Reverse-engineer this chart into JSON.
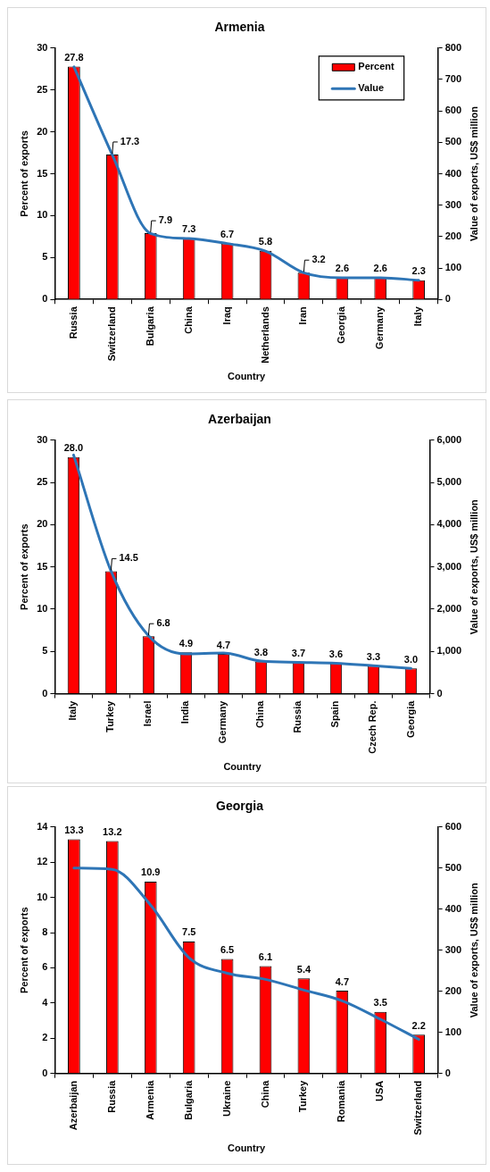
{
  "chart_data": [
    {
      "type": "bar",
      "title": "Armenia",
      "xlabel": "Country",
      "ylabel": "Percent of exports",
      "y2label": "Value of exports, US$ million",
      "categories": [
        "Russia",
        "Switzerland",
        "Bulgaria",
        "China",
        "Iraq",
        "Netherlands",
        "Iran",
        "Georgia",
        "Germany",
        "Italy"
      ],
      "series": [
        {
          "name": "Percent",
          "color": "#ff0000",
          "values": [
            27.8,
            17.3,
            7.9,
            7.3,
            6.7,
            5.8,
            3.2,
            2.6,
            2.6,
            2.3
          ],
          "value_labels": [
            "27.8",
            "17.3",
            "7.9",
            "7.3",
            "6.7",
            "5.8",
            "3.2",
            "2.6",
            "2.6",
            "2.3"
          ]
        },
        {
          "name": "Value",
          "type": "line",
          "axis": "y2",
          "color": "#2e75b6",
          "values": [
            740,
            460,
            210,
            194,
            178,
            154,
            85,
            69,
            69,
            61
          ]
        }
      ],
      "ylim": [
        0,
        30
      ],
      "yticks": [
        0,
        5,
        10,
        15,
        20,
        25,
        30
      ],
      "y2lim": [
        0,
        800
      ],
      "y2ticks": [
        0,
        100,
        200,
        300,
        400,
        500,
        600,
        700,
        800
      ],
      "grid": false,
      "legend": "top right",
      "marker": "none"
    },
    {
      "type": "bar",
      "title": "Azerbaijan",
      "xlabel": "Country",
      "ylabel": "Percent of exports",
      "y2label": "Value of exports, US$ million",
      "categories": [
        "Italy",
        "Turkey",
        "Israel",
        "India",
        "Germany",
        "China",
        "Russia",
        "Spain",
        "Czech Rep.",
        "Georgia"
      ],
      "series": [
        {
          "color": "#ff0000",
          "values": [
            28.0,
            14.5,
            6.8,
            4.9,
            4.7,
            3.8,
            3.7,
            3.6,
            3.3,
            3.0
          ],
          "value_labels": [
            "28.0",
            "14.5",
            "6.8",
            "4.9",
            "4.7",
            "3.8",
            "3.7",
            "3.6",
            "3.3",
            "3.0"
          ]
        },
        {
          "type": "line",
          "axis": "y2",
          "color": "#2e75b6",
          "values": [
            5650,
            2900,
            1370,
            940,
            960,
            770,
            740,
            720,
            660,
            600
          ]
        }
      ],
      "ylim": [
        0,
        30
      ],
      "yticks": [
        0,
        5,
        10,
        15,
        20,
        25,
        30
      ],
      "y2lim": [
        0,
        6000
      ],
      "y2ticks": [
        0,
        {
          "value": 1000,
          "label": "1,000"
        },
        {
          "value": 2000,
          "label": "2,000"
        },
        {
          "value": 3000,
          "label": "3,000"
        },
        {
          "value": 4000,
          "label": "4,000"
        },
        {
          "value": 5000,
          "label": "5,000"
        },
        {
          "value": 6000,
          "label": "6,000"
        }
      ],
      "grid": false,
      "marker": "none"
    },
    {
      "type": "bar",
      "title": "Georgia",
      "xlabel": "Country",
      "ylabel": "Percent of exports",
      "y2label": "Value of exports, US$ million",
      "categories": [
        "Azerbaijan",
        "Russia",
        "Armenia",
        "Bulgaria",
        "Ukraine",
        "China",
        "Turkey",
        "Romania",
        "USA",
        "Switzerland"
      ],
      "series": [
        {
          "color": "#ff0000",
          "values": [
            13.3,
            13.2,
            10.9,
            7.5,
            6.5,
            6.1,
            5.4,
            4.7,
            3.5,
            2.2
          ],
          "value_labels": [
            "13.3",
            "13.2",
            "10.9",
            "7.5",
            "6.5",
            "6.1",
            "5.4",
            "4.7",
            "3.5",
            "2.2"
          ]
        },
        {
          "type": "line",
          "axis": "y2",
          "color": "#2e75b6",
          "values": [
            500,
            497,
            410,
            282,
            244,
            229,
            203,
            177,
            132,
            83
          ]
        }
      ],
      "ylim": [
        0,
        14
      ],
      "yticks": [
        0,
        2,
        4,
        6,
        8,
        10,
        12,
        14
      ],
      "y2lim": [
        0,
        600
      ],
      "y2ticks": [
        0,
        100,
        200,
        300,
        400,
        500,
        600
      ],
      "grid": false,
      "marker": "none"
    }
  ]
}
